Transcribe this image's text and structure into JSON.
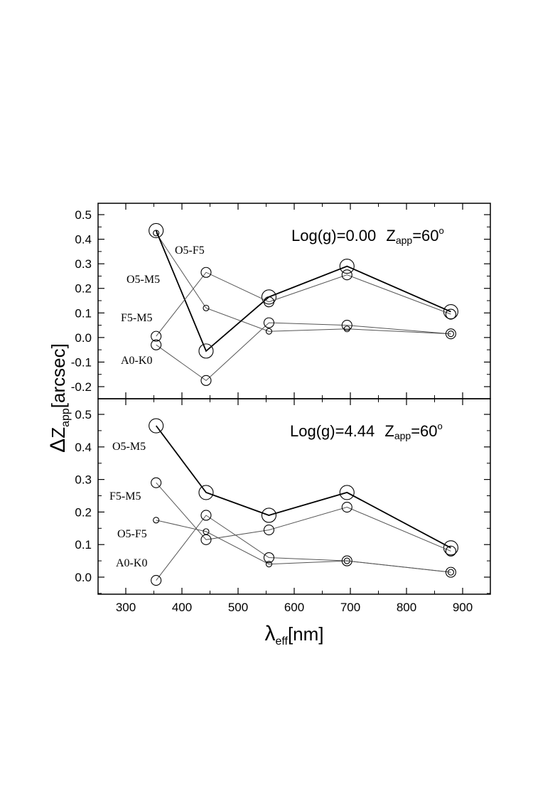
{
  "chart_data": [
    {
      "type": "line",
      "panel": "top",
      "title_main": "Log(g)=0.00",
      "title_z": "Z",
      "title_sub": "app",
      "title_eq": "=60",
      "title_sup": "o",
      "xlabel": "",
      "ylabel": "",
      "xlim": [
        250,
        950
      ],
      "ylim": [
        -0.25,
        0.55
      ],
      "x_ticks": [
        300,
        400,
        500,
        600,
        700,
        800,
        900
      ],
      "y_ticks": [
        -0.2,
        -0.1,
        0.0,
        0.1,
        0.2,
        0.3,
        0.4,
        0.5
      ],
      "y_tick_labels": [
        "-0.2",
        "-0.1",
        "0.0",
        "0.1",
        "0.2",
        "0.3",
        "0.4",
        "0.5"
      ],
      "x": [
        354,
        443,
        555,
        694,
        879
      ],
      "series": [
        {
          "name": "O5-F5",
          "values": [
            0.425,
            0.12,
            0.025,
            0.035,
            0.015
          ],
          "marker": "small",
          "bold": false
        },
        {
          "name": "O5-M5",
          "values": [
            0.435,
            -0.055,
            0.165,
            0.29,
            0.105
          ],
          "marker": "large",
          "bold": true
        },
        {
          "name": "F5-M5",
          "values": [
            0.005,
            0.265,
            0.145,
            0.255,
            0.095
          ],
          "marker": "medium",
          "bold": false
        },
        {
          "name": "A0-K0",
          "values": [
            -0.03,
            -0.175,
            0.06,
            0.05,
            0.015
          ],
          "marker": "medium",
          "bold": false
        }
      ]
    },
    {
      "type": "line",
      "panel": "bottom",
      "title_main": "Log(g)=4.44",
      "title_z": "Z",
      "title_sub": "app",
      "title_eq": "=60",
      "title_sup": "o",
      "xlabel": "",
      "ylabel": "",
      "xlim": [
        250,
        950
      ],
      "ylim": [
        -0.05,
        0.55
      ],
      "x_ticks": [
        300,
        400,
        500,
        600,
        700,
        800,
        900
      ],
      "y_ticks": [
        0.0,
        0.1,
        0.2,
        0.3,
        0.4,
        0.5
      ],
      "y_tick_labels": [
        "0.0",
        "0.1",
        "0.2",
        "0.3",
        "0.4",
        "0.5"
      ],
      "x": [
        354,
        443,
        555,
        694,
        879
      ],
      "series": [
        {
          "name": "O5-M5",
          "values": [
            0.465,
            0.26,
            0.19,
            0.26,
            0.09
          ],
          "marker": "large",
          "bold": true
        },
        {
          "name": "F5-M5",
          "values": [
            0.29,
            0.115,
            0.145,
            0.215,
            0.08
          ],
          "marker": "medium",
          "bold": false
        },
        {
          "name": "O5-F5",
          "values": [
            0.175,
            0.14,
            0.04,
            0.05,
            0.015
          ],
          "marker": "small",
          "bold": false
        },
        {
          "name": "A0-K0",
          "values": [
            -0.01,
            0.19,
            0.06,
            0.05,
            0.015
          ],
          "marker": "medium",
          "bold": false
        }
      ]
    }
  ],
  "axes": {
    "y_title_delta": "Δ",
    "y_title_z": "Z",
    "y_title_sub": "app",
    "y_title_unit": "[arcsec]",
    "x_title_lambda": "λ",
    "x_title_sub": "eff",
    "x_title_unit": "[nm]"
  },
  "x_tick_labels": [
    "300",
    "400",
    "500",
    "600",
    "700",
    "800",
    "900"
  ]
}
